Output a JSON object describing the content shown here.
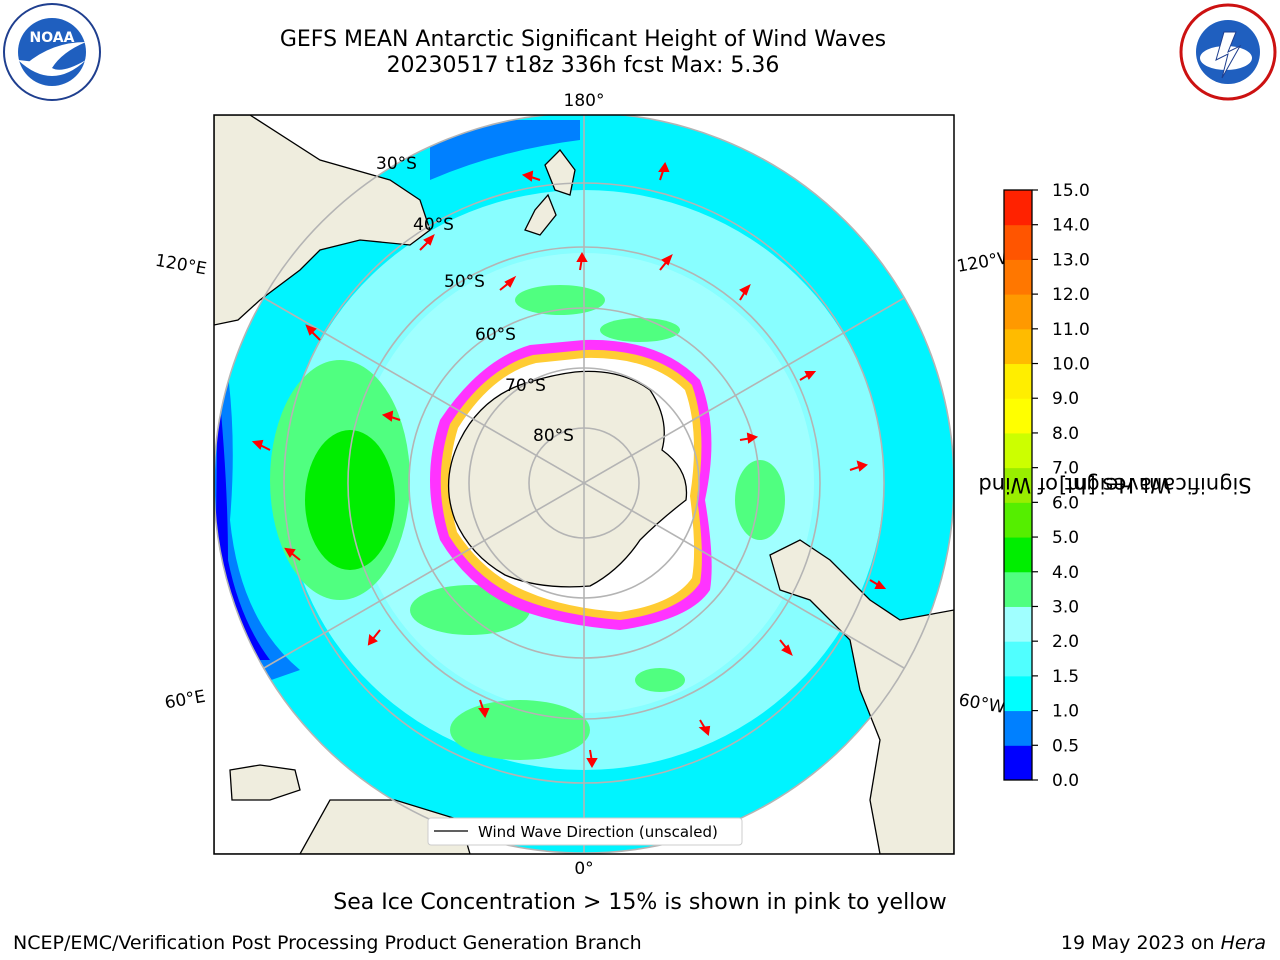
{
  "title": {
    "line1": "GEFS MEAN Antarctic Significant Height of Wind Waves",
    "line2": "20230517 t18z 336h fcst    Max: 5.36"
  },
  "logos": {
    "left": "noaa-logo",
    "right": "nws-logo"
  },
  "map": {
    "projection": "south-polar-stereographic",
    "meridian_labels": {
      "top": "180°",
      "bottom": "0°",
      "left_upper": "120°E",
      "left_lower": "60°E",
      "right_upper": "120°W",
      "right_lower": "60°W"
    },
    "parallel_labels": [
      "30°S",
      "40°S",
      "50°S",
      "60°S",
      "70°S",
      "80°S"
    ],
    "legend_label": "Wind Wave Direction (unscaled)",
    "arrow_color": "#ff0000",
    "land_color": "#efedde",
    "sea_ice_colors": [
      "#ff33ff",
      "#ffcc33"
    ]
  },
  "colorbar": {
    "label": "Significant Height of Wind Waves [m]",
    "label_line1": "Significant Height of Wind",
    "label_line2": "Waves [m]",
    "ticks": [
      "0.0",
      "0.5",
      "1.0",
      "1.5",
      "2.0",
      "3.0",
      "4.0",
      "5.0",
      "6.0",
      "7.0",
      "8.0",
      "9.0",
      "10.0",
      "11.0",
      "12.0",
      "13.0",
      "14.0",
      "15.0"
    ],
    "colors": [
      "#0000ff",
      "#0080ff",
      "#00ffff",
      "#50ffff",
      "#a0ffff",
      "#50ff80",
      "#00ee00",
      "#55ee00",
      "#99ee00",
      "#ccff00",
      "#ffff00",
      "#ffee00",
      "#ffbb00",
      "#ff9900",
      "#ff7700",
      "#ff5500",
      "#ff2200"
    ]
  },
  "footer": {
    "note": "Sea Ice Concentration > 15% is shown in pink to yellow",
    "credit": "NCEP/EMC/Verification Post Processing Product Generation Branch",
    "date": "19 May 2023 on ",
    "host": "Hera"
  }
}
